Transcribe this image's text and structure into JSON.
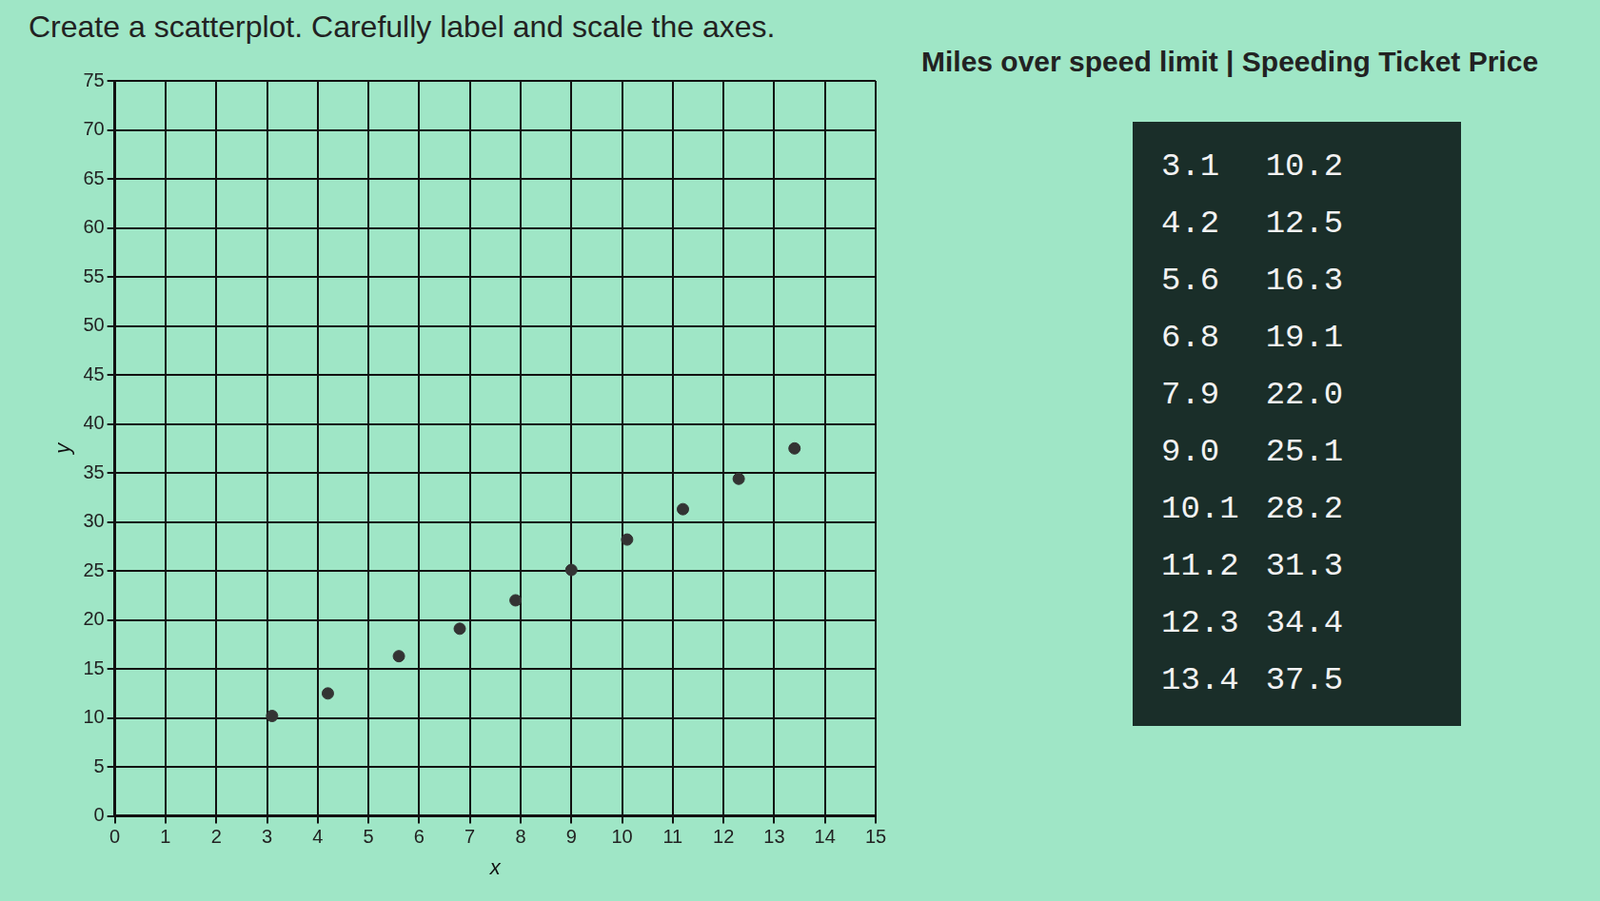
{
  "chart_data": {
    "type": "scatter",
    "title": "Create a scatterplot. Carefully label and scale the axes.",
    "x_label": "x",
    "y_label": "y",
    "x": [
      3.1,
      4.2,
      5.6,
      6.8,
      7.9,
      9.0,
      10.1,
      11.2,
      12.3,
      13.4
    ],
    "values": [
      10.2,
      12.5,
      16.3,
      19.1,
      22.0,
      25.1,
      28.2,
      31.3,
      34.4,
      37.5
    ],
    "color": "#333333",
    "marker": "circle",
    "xlim": [
      0,
      15
    ],
    "xticks": [
      0,
      1,
      2,
      3,
      4,
      5,
      6,
      7,
      8,
      9,
      10,
      11,
      12,
      13,
      14,
      15
    ],
    "ylim": [
      0,
      75
    ],
    "yticks": [
      0,
      5,
      10,
      15,
      20,
      25,
      30,
      35,
      40,
      45,
      50,
      55,
      60,
      65,
      70,
      75
    ],
    "grid": true
  },
  "table": {
    "header": "Miles over speed limit | Speeding Ticket Price",
    "rows": [
      [
        "3.1",
        "10.2"
      ],
      [
        "4.2",
        "12.5"
      ],
      [
        "5.6",
        "16.3"
      ],
      [
        "6.8",
        "19.1"
      ],
      [
        "7.9",
        "22.0"
      ],
      [
        "9.0",
        "25.1"
      ],
      [
        "10.1",
        "28.2"
      ],
      [
        "11.2",
        "31.3"
      ],
      [
        "12.3",
        "34.4"
      ],
      [
        "13.4",
        "37.5"
      ]
    ]
  }
}
